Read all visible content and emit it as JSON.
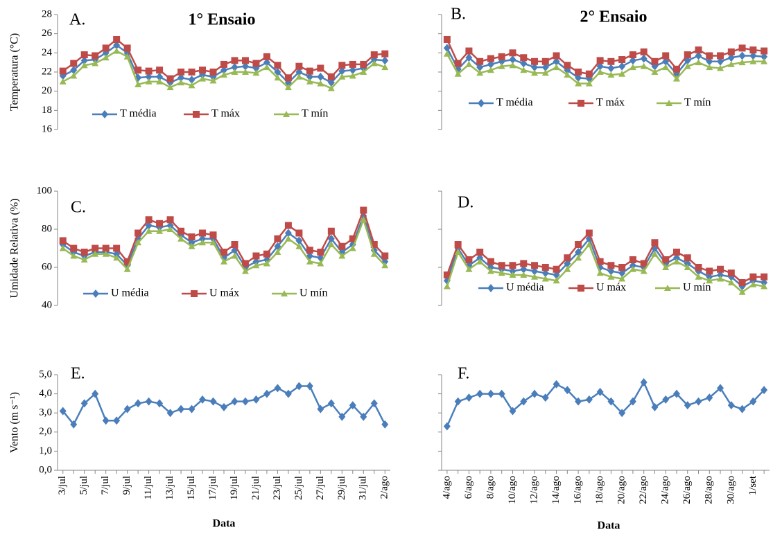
{
  "chart_data": [
    {
      "type": "line",
      "panel_label": "A.",
      "title": "1° Ensaio",
      "y_label": "Temperatura (°C)",
      "ylim": [
        16,
        28
      ],
      "yticks": [
        16,
        18,
        20,
        22,
        24,
        26,
        28
      ],
      "series": [
        {
          "name": "T média",
          "color": "#4a7ebb",
          "marker": "diamond",
          "values": [
            21.6,
            22.2,
            23.2,
            23.3,
            24.0,
            24.8,
            24.0,
            21.4,
            21.5,
            21.5,
            20.9,
            21.4,
            21.2,
            21.7,
            21.5,
            22.2,
            22.5,
            22.6,
            22.4,
            23.0,
            22.0,
            20.9,
            22.0,
            21.5,
            21.5,
            20.9,
            22.1,
            22.2,
            22.4,
            23.3,
            23.2
          ]
        },
        {
          "name": "T máx",
          "color": "#be4b48",
          "marker": "square",
          "values": [
            22.1,
            22.9,
            23.8,
            23.7,
            24.5,
            25.4,
            24.5,
            22.2,
            22.1,
            22.2,
            21.3,
            22.0,
            22.0,
            22.2,
            22.0,
            22.8,
            23.2,
            23.2,
            22.9,
            23.6,
            22.7,
            21.4,
            22.6,
            22.1,
            22.4,
            21.5,
            22.7,
            22.8,
            22.8,
            23.8,
            23.9
          ]
        },
        {
          "name": "T mín",
          "color": "#98b954",
          "marker": "triangle",
          "values": [
            21.0,
            21.6,
            22.7,
            22.9,
            23.5,
            24.2,
            23.6,
            20.7,
            21.0,
            21.0,
            20.4,
            20.9,
            20.6,
            21.3,
            21.1,
            21.7,
            22.0,
            22.0,
            21.9,
            22.5,
            21.4,
            20.4,
            21.5,
            21.0,
            20.8,
            20.3,
            21.5,
            21.6,
            22.0,
            22.9,
            22.5
          ]
        }
      ]
    },
    {
      "type": "line",
      "panel_label": "B.",
      "title": "2° Ensaio",
      "ylim": [
        16,
        28
      ],
      "yticks": [
        16,
        18,
        20,
        22,
        24,
        26,
        28
      ],
      "series": [
        {
          "name": "T média",
          "color": "#4a7ebb",
          "marker": "diamond",
          "values": [
            24.5,
            22.3,
            23.5,
            22.5,
            22.8,
            23.1,
            23.3,
            22.9,
            22.5,
            22.5,
            23.1,
            22.2,
            21.4,
            21.3,
            22.6,
            22.4,
            22.6,
            23.2,
            23.4,
            22.6,
            23.1,
            21.8,
            23.2,
            23.7,
            23.1,
            23.1,
            23.5,
            23.7,
            23.7,
            23.6
          ]
        },
        {
          "name": "T máx",
          "color": "#be4b48",
          "marker": "square",
          "values": [
            25.4,
            22.9,
            24.2,
            23.1,
            23.4,
            23.6,
            24.0,
            23.5,
            23.1,
            23.1,
            23.7,
            22.7,
            22.0,
            21.8,
            23.2,
            23.1,
            23.3,
            23.8,
            24.1,
            23.1,
            23.7,
            22.3,
            23.8,
            24.3,
            23.7,
            23.7,
            24.1,
            24.5,
            24.3,
            24.2
          ]
        },
        {
          "name": "T mín",
          "color": "#98b954",
          "marker": "triangle",
          "values": [
            23.9,
            21.8,
            22.8,
            21.9,
            22.2,
            22.6,
            22.7,
            22.2,
            21.9,
            21.9,
            22.5,
            21.7,
            20.8,
            20.8,
            22.0,
            21.7,
            21.8,
            22.5,
            22.6,
            22.0,
            22.5,
            21.3,
            22.6,
            23.0,
            22.5,
            22.4,
            22.8,
            23.0,
            23.1,
            23.1
          ]
        }
      ]
    },
    {
      "type": "line",
      "panel_label": "C.",
      "y_label": "Umidade Relativa (%)",
      "ylim": [
        40,
        100
      ],
      "yticks": [
        40,
        60,
        80,
        100
      ],
      "series": [
        {
          "name": "U média",
          "color": "#4a7ebb",
          "marker": "diamond",
          "values": [
            72,
            68,
            66,
            68,
            68,
            67,
            61,
            75,
            82,
            81,
            82,
            77,
            73,
            75,
            75,
            65,
            69,
            60,
            63,
            64,
            71,
            78,
            74,
            66,
            65,
            75,
            68,
            72,
            87,
            69,
            63
          ]
        },
        {
          "name": "U máx",
          "color": "#be4b48",
          "marker": "square",
          "values": [
            74,
            70,
            68,
            70,
            70,
            70,
            63,
            78,
            85,
            83,
            85,
            79,
            76,
            78,
            77,
            68,
            72,
            62,
            66,
            67,
            75,
            82,
            78,
            69,
            68,
            79,
            71,
            75,
            90,
            72,
            66
          ]
        },
        {
          "name": "U mín",
          "color": "#98b954",
          "marker": "triangle",
          "values": [
            70,
            66,
            64,
            67,
            67,
            65,
            59,
            73,
            79,
            79,
            80,
            75,
            71,
            73,
            73,
            63,
            66,
            58,
            61,
            62,
            68,
            75,
            71,
            63,
            62,
            72,
            66,
            70,
            85,
            67,
            61
          ]
        }
      ]
    },
    {
      "type": "line",
      "panel_label": "D.",
      "ylim": [
        40,
        100
      ],
      "yticks": [
        40,
        60,
        80,
        100
      ],
      "series": [
        {
          "name": "U média",
          "color": "#4a7ebb",
          "marker": "diamond",
          "values": [
            53,
            70,
            61,
            65,
            60,
            59,
            58,
            59,
            58,
            57,
            56,
            62,
            68,
            75,
            60,
            58,
            57,
            61,
            60,
            70,
            62,
            65,
            62,
            58,
            55,
            56,
            55,
            50,
            53,
            52
          ]
        },
        {
          "name": "U máx",
          "color": "#be4b48",
          "marker": "square",
          "values": [
            56,
            72,
            64,
            68,
            63,
            61,
            61,
            62,
            61,
            60,
            59,
            65,
            72,
            78,
            63,
            61,
            60,
            64,
            62,
            73,
            64,
            68,
            65,
            60,
            58,
            59,
            57,
            52,
            55,
            55
          ]
        },
        {
          "name": "U mín",
          "color": "#98b954",
          "marker": "triangle",
          "values": [
            50,
            68,
            59,
            63,
            58,
            57,
            56,
            56,
            55,
            54,
            53,
            59,
            65,
            72,
            57,
            55,
            54,
            59,
            58,
            67,
            60,
            63,
            60,
            55,
            53,
            54,
            52,
            47,
            51,
            50
          ]
        }
      ]
    },
    {
      "type": "line",
      "panel_label": "E.",
      "y_label": "Vento (m s⁻¹)",
      "x_label": "Data",
      "categories": [
        "3/jul",
        null,
        "5/jul",
        null,
        "7/jul",
        null,
        "9/jul",
        null,
        "11/jul",
        null,
        "13/jul",
        null,
        "15/jul",
        null,
        "17/jul",
        null,
        "19/jul",
        null,
        "21/jul",
        null,
        "23/jul",
        null,
        "25/jul",
        null,
        "27/jul",
        null,
        "29/jul",
        null,
        "31/jul",
        null,
        "2/ago"
      ],
      "ylim": [
        0,
        5
      ],
      "yticks": [
        {
          "value": 0,
          "label": "0,0"
        },
        {
          "value": 1,
          "label": "1,0"
        },
        {
          "value": 2,
          "label": "2,0"
        },
        {
          "value": 3,
          "label": "3,0"
        },
        {
          "value": 4,
          "label": "4,0"
        },
        {
          "value": 5,
          "label": "5,0"
        }
      ],
      "series": [
        {
          "color": "#4a7ebb",
          "marker": "diamond",
          "values": [
            3.1,
            2.4,
            3.5,
            4.0,
            2.6,
            2.6,
            3.2,
            3.5,
            3.6,
            3.5,
            3.0,
            3.2,
            3.2,
            3.7,
            3.6,
            3.3,
            3.6,
            3.6,
            3.7,
            4.0,
            4.3,
            4.0,
            4.4,
            4.4,
            3.2,
            3.5,
            2.8,
            3.4,
            2.8,
            3.5,
            2.4
          ]
        }
      ]
    },
    {
      "type": "line",
      "panel_label": "F.",
      "x_label": "Data",
      "categories": [
        "4/ago",
        null,
        "6/ago",
        null,
        "8/ago",
        null,
        "10/ago",
        null,
        "12/ago",
        null,
        "14/ago",
        null,
        "16/ago",
        null,
        "18/ago",
        null,
        "20/ago",
        null,
        "22/ago",
        null,
        "24/ago",
        null,
        "26/ago",
        null,
        "28/ago",
        null,
        "30/ago",
        null,
        "1/set",
        null
      ],
      "ylim": [
        0,
        5
      ],
      "yticks": [
        0,
        1,
        2,
        3,
        4,
        5
      ],
      "series": [
        {
          "color": "#4a7ebb",
          "marker": "diamond",
          "values": [
            2.3,
            3.6,
            3.8,
            4.0,
            4.0,
            4.0,
            3.1,
            3.6,
            4.0,
            3.8,
            4.5,
            4.2,
            3.6,
            3.7,
            4.1,
            3.6,
            3.0,
            3.6,
            4.6,
            3.3,
            3.7,
            4.0,
            3.4,
            3.6,
            3.8,
            4.3,
            3.4,
            3.2,
            3.6,
            4.2
          ]
        }
      ]
    }
  ]
}
